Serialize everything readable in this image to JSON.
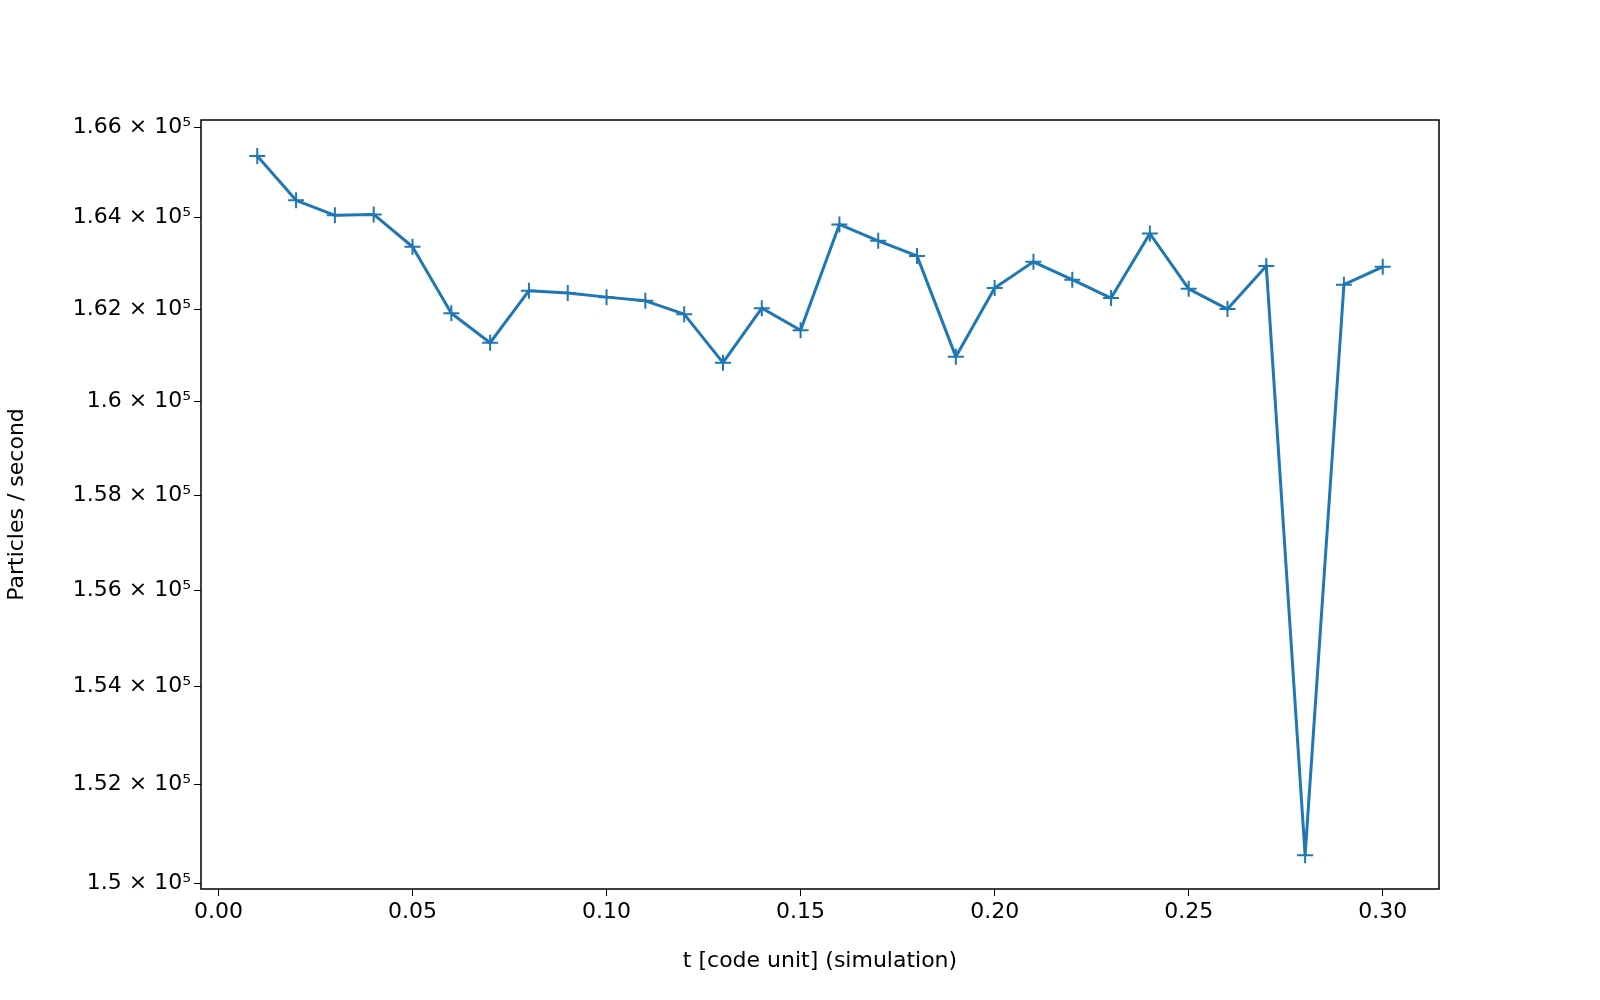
{
  "chart_data": {
    "type": "line",
    "xlabel": "t [code unit] (simulation)",
    "ylabel": "Particles / second",
    "log": true,
    "color": "#1f77b4",
    "marker": "cross",
    "line_style": "solid",
    "grid": false,
    "legend": false,
    "x": [
      0.01,
      0.02,
      0.03,
      0.04,
      0.05,
      0.06,
      0.07,
      0.08,
      0.09,
      0.1,
      0.11,
      0.12,
      0.13,
      0.14,
      0.15,
      0.16,
      0.17,
      0.18,
      0.19,
      0.2,
      0.21,
      0.22,
      0.23,
      0.24,
      0.25,
      0.26,
      0.27,
      0.28,
      0.29,
      0.3
    ],
    "values": [
      165360,
      164380,
      164050,
      164070,
      163360,
      161910,
      161270,
      162400,
      162350,
      162260,
      162180,
      161890,
      160840,
      162020,
      161540,
      163850,
      163490,
      163160,
      160970,
      162460,
      163030,
      162640,
      162240,
      163650,
      162440,
      162000,
      162940,
      150560,
      162530,
      162920
    ],
    "xlim": [
      -0.0045,
      0.3145
    ],
    "xticks": [
      {
        "value": 0,
        "label": "0.00"
      },
      {
        "value": 0.05,
        "label": "0.05"
      },
      {
        "value": 0.1,
        "label": "0.10"
      },
      {
        "value": 0.15,
        "label": "0.15"
      },
      {
        "value": 0.2,
        "label": "0.20"
      },
      {
        "value": 0.25,
        "label": "0.25"
      },
      {
        "value": 0.3,
        "label": "0.30"
      }
    ],
    "ylim": [
      149880,
      166160
    ],
    "yticks": [
      {
        "value": 150000,
        "label": "1.5 × 10⁵"
      },
      {
        "value": 152000,
        "label": "1.52 × 10⁵"
      },
      {
        "value": 154000,
        "label": "1.54 × 10⁵"
      },
      {
        "value": 156000,
        "label": "1.56 × 10⁵"
      },
      {
        "value": 158000,
        "label": "1.58 × 10⁵"
      },
      {
        "value": 160000,
        "label": "1.6 × 10⁵"
      },
      {
        "value": 162000,
        "label": "1.62 × 10⁵"
      },
      {
        "value": 164000,
        "label": "1.64 × 10⁵"
      },
      {
        "value": 166000,
        "label": "1.66 × 10⁵"
      }
    ]
  }
}
